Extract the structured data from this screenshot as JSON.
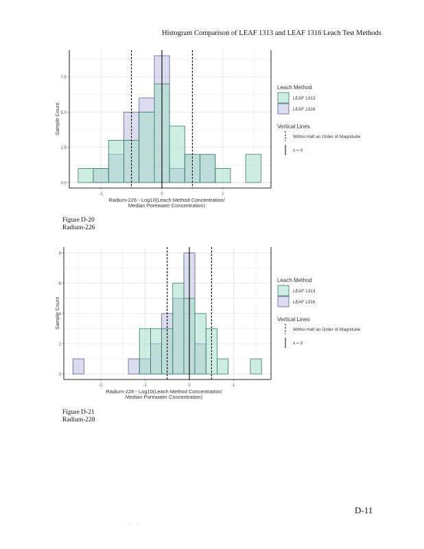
{
  "page": {
    "title": "Histogram Comparison of LEAF 1313 and LEAF 1316 Leach Test Methods",
    "page_number": "D-11",
    "footer_marks": ". ."
  },
  "captions": [
    {
      "figure": "Figure D-20",
      "subject": "Radium-226"
    },
    {
      "figure": "Figure D-21",
      "subject": "Radium-228"
    }
  ],
  "colors": {
    "leaf1313_fill": "#9fdcc6",
    "leaf1313_stroke": "#2f7a66",
    "leaf1316_fill": "#b9b9e0",
    "leaf1316_stroke": "#5b5b98",
    "grid": "#e6e6e6",
    "axis": "#222222"
  },
  "chart_data": [
    {
      "type": "bar",
      "subtype": "overlaid-histogram",
      "title": "",
      "xlabel_line1": "Radium-226 - Log10(Leach Method Concentration/",
      "xlabel_line2": "Median Porewater Concentration)",
      "ylabel": "Sample Count",
      "xlim": [
        -1.52,
        1.79
      ],
      "ylim": [
        0,
        9.3
      ],
      "x_ticks": [
        -1,
        0,
        1
      ],
      "x_tick_labels": [
        "-1",
        "0",
        "1"
      ],
      "y_ticks": [
        0,
        2.5,
        5.0,
        7.5
      ],
      "y_tick_labels": [
        "0.0",
        "2.5",
        "5.0",
        "7.5"
      ],
      "bin_width": 0.25,
      "bin_centers": [
        -1.25,
        -1.0,
        -0.75,
        -0.5,
        -0.25,
        0.0,
        0.25,
        0.5,
        0.75,
        1.0,
        1.25,
        1.5
      ],
      "series": [
        {
          "name": "LEAF 1313",
          "values": [
            1,
            1,
            3,
            3,
            5,
            7,
            4,
            2,
            2,
            1,
            0,
            2
          ]
        },
        {
          "name": "LEAF 1316",
          "values": [
            0,
            1,
            2,
            5,
            6,
            9,
            1,
            2,
            2,
            0,
            0,
            0
          ]
        }
      ],
      "vlines": [
        {
          "x": -0.5,
          "style": "dashed",
          "label": "Within Half an Order of Magnitude"
        },
        {
          "x": 0.5,
          "style": "dashed",
          "label": "Within Half an Order of Magnitude"
        },
        {
          "x": 0,
          "style": "solid",
          "label": "x = 0"
        }
      ],
      "grid": true,
      "legend": {
        "placement": "right",
        "fill_title": "Leach Method",
        "fill_items": [
          "LEAF 1313",
          "LEAF 1316"
        ],
        "lines_title": "Vertical Lines",
        "line_items": [
          "Within Half an Order of Magnitude",
          "x = 0"
        ]
      }
    },
    {
      "type": "bar",
      "subtype": "overlaid-histogram",
      "title": "",
      "xlabel_line1": "Radium-228 - Log10(Leach Method Concentration/",
      "xlabel_line2": "Median Porewater Concentration)",
      "ylabel": "Sample Count",
      "xlim": [
        -2.83,
        1.84
      ],
      "ylim": [
        0,
        8.3
      ],
      "x_ticks": [
        -2,
        -1,
        0,
        1
      ],
      "x_tick_labels": [
        "-2",
        "-1",
        "0",
        "1"
      ],
      "y_ticks": [
        0,
        2,
        4,
        6,
        8
      ],
      "y_tick_labels": [
        "0",
        "2",
        "4",
        "6",
        "8"
      ],
      "bin_width": 0.25,
      "bin_centers": [
        -2.5,
        -2.25,
        -2.0,
        -1.75,
        -1.5,
        -1.25,
        -1.0,
        -0.75,
        -0.5,
        -0.25,
        0.0,
        0.25,
        0.5,
        0.75,
        1.0,
        1.25,
        1.5
      ],
      "series": [
        {
          "name": "LEAF 1313",
          "values": [
            0,
            0,
            0,
            0,
            0,
            0,
            3,
            3,
            3,
            6,
            5,
            4,
            3,
            1,
            0,
            0,
            1
          ]
        },
        {
          "name": "LEAF 1316",
          "values": [
            1,
            0,
            0,
            0,
            0,
            1,
            1,
            2,
            4,
            5,
            8,
            2,
            0,
            0,
            0,
            0,
            0
          ]
        }
      ],
      "vlines": [
        {
          "x": -0.5,
          "style": "dashed",
          "label": "Within Half an Order of Magnitude"
        },
        {
          "x": 0.5,
          "style": "dashed",
          "label": "Within Half an Order of Magnitude"
        },
        {
          "x": 0,
          "style": "solid",
          "label": "x = 0"
        }
      ],
      "grid": true,
      "legend": {
        "placement": "right",
        "fill_title": "Leach Method",
        "fill_items": [
          "LEAF 1313",
          "LEAF 1316"
        ],
        "lines_title": "Vertical Lines",
        "line_items": [
          "Within Half an Order of Magnitude",
          "x = 0"
        ]
      }
    }
  ]
}
